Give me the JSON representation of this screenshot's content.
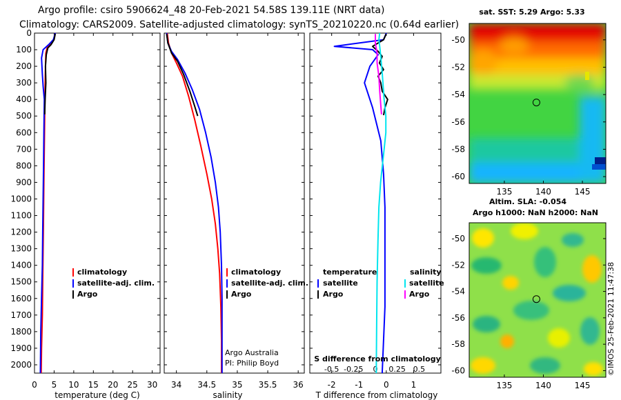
{
  "header": {
    "line1": "Argo profile: csiro 5906624_48 20-Feb-2021 54.58S 139.11E (NRT data)",
    "line2": "Climatology: CARS2009. Satellite-adjusted climatology: synTS_20210220.nc (0.64d earlier)"
  },
  "colors": {
    "climatology": "#ff0000",
    "satellite_adj": "#0000ff",
    "argo": "#000000",
    "s_satellite": "#00e5ee",
    "s_argo": "#ff00ff"
  },
  "depth_axis": {
    "ylim": [
      0,
      2050
    ],
    "ticks": [
      0,
      100,
      200,
      300,
      400,
      500,
      600,
      700,
      800,
      900,
      1000,
      1100,
      1200,
      1300,
      1400,
      1500,
      1600,
      1700,
      1800,
      1900,
      2000
    ]
  },
  "chart_data": [
    {
      "type": "line",
      "title": "",
      "xlabel": "temperature (deg C)",
      "ylabel": "depth",
      "xlim": [
        0,
        32
      ],
      "xticks": [
        0,
        5,
        10,
        15,
        20,
        25,
        30
      ],
      "legend": {
        "placement": "lower-center",
        "entries": [
          "climatology",
          "satellite-adj. clim.",
          "Argo"
        ]
      },
      "series": [
        {
          "name": "climatology",
          "color": "#ff0000",
          "x": [
            5.3,
            4.9,
            4.0,
            3.2,
            2.9,
            2.8,
            2.7,
            2.6,
            2.5,
            2.4,
            2.3,
            2.2,
            2.1,
            2.0,
            1.8,
            1.7
          ],
          "y": [
            0,
            40,
            70,
            90,
            120,
            200,
            300,
            500,
            700,
            900,
            1100,
            1300,
            1500,
            1700,
            1900,
            2050
          ]
        },
        {
          "name": "satellite-adj. clim.",
          "color": "#0000ff",
          "x": [
            5.3,
            4.8,
            3.6,
            2.2,
            1.8,
            2.0,
            2.2,
            2.5,
            2.4,
            2.3,
            2.2,
            2.1,
            2.0,
            1.8,
            1.6,
            1.5
          ],
          "y": [
            0,
            40,
            70,
            100,
            150,
            250,
            320,
            400,
            600,
            800,
            1000,
            1200,
            1400,
            1600,
            1800,
            2050
          ]
        },
        {
          "name": "Argo",
          "color": "#000000",
          "x": [
            5.3,
            5.0,
            4.2,
            3.4,
            3.0,
            2.8,
            2.9,
            2.7,
            2.6
          ],
          "y": [
            5,
            40,
            70,
            90,
            130,
            200,
            300,
            400,
            490
          ]
        }
      ]
    },
    {
      "type": "line",
      "title": "",
      "xlabel": "salinity",
      "ylabel": "depth",
      "xlim": [
        33.8,
        36.1
      ],
      "xticks": [
        34,
        34.5,
        35,
        35.5,
        36
      ],
      "xticklabels": [
        "34",
        "34.5",
        "35",
        "35.5",
        "36"
      ],
      "legend": {
        "placement": "lower-right",
        "entries": [
          "climatology",
          "satellite-adj. clim.",
          "Argo"
        ]
      },
      "annotation": [
        "Argo Australia",
        "PI: Philip Boyd"
      ],
      "series": [
        {
          "name": "climatology",
          "color": "#ff0000",
          "x": [
            33.85,
            33.87,
            33.92,
            34.0,
            34.1,
            34.2,
            34.3,
            34.4,
            34.5,
            34.58,
            34.64,
            34.68,
            34.71,
            34.73,
            34.74,
            34.74
          ],
          "y": [
            0,
            60,
            120,
            180,
            260,
            380,
            520,
            680,
            850,
            1000,
            1150,
            1300,
            1450,
            1650,
            1850,
            2050
          ]
        },
        {
          "name": "satellite-adj. clim.",
          "color": "#0000ff",
          "x": [
            33.84,
            33.86,
            33.92,
            34.02,
            34.14,
            34.26,
            34.38,
            34.48,
            34.57,
            34.64,
            34.69,
            34.72,
            34.74,
            34.75,
            34.75,
            34.75
          ],
          "y": [
            0,
            60,
            110,
            160,
            240,
            340,
            460,
            600,
            750,
            900,
            1050,
            1200,
            1400,
            1600,
            1800,
            2050
          ]
        },
        {
          "name": "Argo",
          "color": "#000000",
          "x": [
            33.84,
            33.86,
            33.92,
            34.02,
            34.12,
            34.22,
            34.3,
            34.35
          ],
          "y": [
            5,
            60,
            120,
            170,
            250,
            350,
            440,
            500
          ]
        }
      ]
    },
    {
      "type": "line",
      "title": "",
      "xlabel": "T difference from climatology",
      "ylabel": "depth",
      "xlim": [
        -2.8,
        2.0
      ],
      "xticks": [
        -2,
        -1,
        0,
        1
      ],
      "xticklabels": [
        "-2",
        "-1",
        "0",
        "1"
      ],
      "secondary_x": {
        "label": "S difference from climatology",
        "xlim": [
          -0.75,
          0.75
        ],
        "ticks": [
          -0.5,
          -0.25,
          0,
          0.25,
          0.5
        ],
        "ticklabels": [
          "-0.5",
          "-0.25",
          "0",
          "0.25",
          "0.5"
        ]
      },
      "legend": {
        "placement": "lower",
        "temperature_title": "temperature",
        "salinity_title": "salinity",
        "entries": [
          "satellite",
          "Argo",
          "satellite",
          "Argo"
        ]
      },
      "series": [
        {
          "name": "T satellite",
          "axis": "T",
          "color": "#0000ff",
          "x": [
            0.0,
            -0.1,
            -1.9,
            -0.5,
            -0.3,
            -0.6,
            -0.8,
            -0.5,
            -0.2,
            -0.1,
            -0.05,
            -0.05,
            -0.05,
            -0.05,
            -0.1,
            -0.15
          ],
          "y": [
            0,
            40,
            80,
            100,
            130,
            200,
            300,
            450,
            650,
            850,
            1050,
            1250,
            1450,
            1650,
            1850,
            2050
          ]
        },
        {
          "name": "T Argo",
          "axis": "T",
          "color": "#000000",
          "x": [
            0.0,
            -0.1,
            -0.5,
            -0.3,
            -0.15,
            -0.25,
            -0.1,
            -0.3,
            -0.2,
            -0.15,
            0.05,
            -0.05,
            -0.1
          ],
          "y": [
            5,
            40,
            80,
            110,
            140,
            180,
            220,
            260,
            300,
            350,
            400,
            450,
            495
          ]
        },
        {
          "name": "S satellite",
          "axis": "S",
          "color": "#00e5ee",
          "x": [
            0.05,
            0.04,
            0.05,
            0.06,
            0.08,
            0.1,
            0.12,
            0.12,
            0.1,
            0.08,
            0.06,
            0.04,
            0.03,
            0.02,
            0.015,
            0.01
          ],
          "y": [
            0,
            40,
            80,
            130,
            250,
            400,
            500,
            600,
            700,
            800,
            900,
            1050,
            1250,
            1500,
            1750,
            2050
          ]
        },
        {
          "name": "S Argo",
          "axis": "S",
          "color": "#ff00ff",
          "x": [
            0.0,
            0.0,
            0.02,
            0.02,
            0.04,
            0.05,
            0.06,
            0.07
          ],
          "y": [
            5,
            60,
            120,
            180,
            260,
            350,
            420,
            490
          ]
        }
      ]
    },
    {
      "type": "heatmap",
      "title": "sat. SST: 5.29 Argo: 5.33",
      "xlim": [
        130.5,
        148
      ],
      "ylim": [
        -60.5,
        -48.8
      ],
      "xticks": [
        135,
        140,
        145
      ],
      "yticks": [
        -50,
        -52,
        -54,
        -56,
        -58,
        -60
      ],
      "marker": {
        "lon": 139.11,
        "lat": -54.58
      }
    },
    {
      "type": "heatmap",
      "title": "Altim. SLA: -0.054",
      "subtitle": "Argo h1000: NaN h2000: NaN",
      "xlim": [
        130.5,
        148
      ],
      "ylim": [
        -60.5,
        -48.8
      ],
      "xticks": [
        135,
        140,
        145
      ],
      "yticks": [
        -50,
        -52,
        -54,
        -56,
        -58,
        -60
      ],
      "marker": {
        "lon": 139.11,
        "lat": -54.58
      }
    }
  ],
  "stamp": "©IMOS 25-Feb-2021 11:47:38"
}
